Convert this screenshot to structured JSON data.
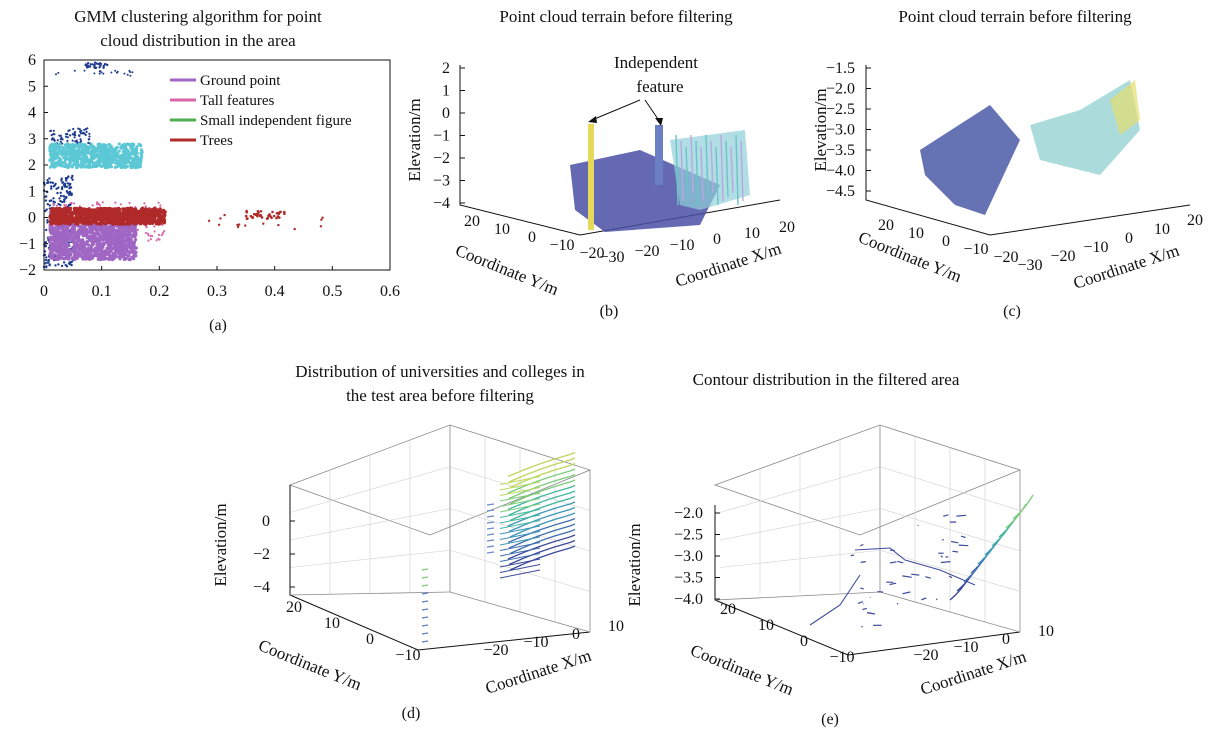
{
  "chart_data": [
    {
      "id": "a",
      "type": "scatter",
      "caption": "(a)",
      "title_lines": [
        "GMM clustering algorithm for point",
        "cloud distribution in the area"
      ],
      "xlabel": "",
      "ylabel": "",
      "xlim": [
        0,
        0.6
      ],
      "ylim": [
        -2,
        6
      ],
      "x_ticks": [
        "0",
        "0.1",
        "0.2",
        "0.3",
        "0.4",
        "0.5",
        "0.6"
      ],
      "y_ticks": [
        "6",
        "5",
        "4",
        "3",
        "2",
        "1",
        "0",
        "−1",
        "−2"
      ],
      "legend_position": "top-right",
      "series": [
        {
          "name": "Ground point",
          "color": "#a066c4",
          "x_range": [
            0.01,
            0.16
          ],
          "y_range": [
            -1.6,
            -0.2
          ]
        },
        {
          "name": "Tall features",
          "color": "#d966a8",
          "x_range": [
            0.01,
            0.2
          ],
          "y_range": [
            -0.8,
            0.5
          ]
        },
        {
          "name": "Small independent figure",
          "color": "#4caf50",
          "x_range": [
            0.01,
            0.17
          ],
          "y_range": [
            1.9,
            2.7
          ]
        },
        {
          "name": "Trees",
          "color": "#b02a2a",
          "x_range": [
            0.01,
            0.21
          ],
          "y_range": [
            -0.25,
            0.35
          ]
        }
      ],
      "extra_clusters": [
        {
          "label": "cyan band",
          "color": "#5cc8d6",
          "x_range": [
            0.01,
            0.17
          ],
          "y_range": [
            1.9,
            2.8
          ]
        },
        {
          "label": "navy points",
          "color": "#1f3b8f",
          "x_range": [
            0.0,
            0.09
          ],
          "y_range": [
            -2.0,
            5.9
          ]
        }
      ]
    },
    {
      "id": "b",
      "type": "3d-surface",
      "caption": "(b)",
      "title": "Point cloud terrain before filtering",
      "annotation": [
        "Independent",
        "feature"
      ],
      "xlabel": "Coordinate X/m",
      "ylabel": "Coordinate Y/m",
      "zlabel": "Elevation/m",
      "x_ticks": [
        "−30",
        "−20",
        "−10",
        "0",
        "10",
        "20"
      ],
      "y_ticks": [
        "20",
        "10",
        "0",
        "−10",
        "−20"
      ],
      "z_ticks": [
        "2",
        "1",
        "0",
        "−1",
        "−2",
        "−3",
        "−4"
      ]
    },
    {
      "id": "c",
      "type": "3d-surface",
      "caption": "(c)",
      "title": "Point cloud terrain before filtering",
      "xlabel": "Coordinate X/m",
      "ylabel": "Coordinate Y/m",
      "zlabel": "Elevation/m",
      "x_ticks": [
        "−30",
        "−20",
        "−10",
        "0",
        "10",
        "20"
      ],
      "y_ticks": [
        "20",
        "10",
        "0",
        "−10",
        "−20"
      ],
      "z_ticks": [
        "−1.5",
        "−2.0",
        "−2.5",
        "−3.0",
        "−3.5",
        "−4.0",
        "−4.5"
      ]
    },
    {
      "id": "d",
      "type": "3d-contour",
      "caption": "(d)",
      "title_lines": [
        "Distribution of universities and colleges in",
        "the test area before filtering"
      ],
      "xlabel": "Coordinate X/m",
      "ylabel": "Coordinate Y/m",
      "zlabel": "Elevation/m",
      "x_ticks": [
        "−20",
        "−10",
        "0",
        "10"
      ],
      "y_ticks": [
        "20",
        "10",
        "0",
        "−10"
      ],
      "z_ticks": [
        "0",
        "−2",
        "−4"
      ]
    },
    {
      "id": "e",
      "type": "3d-contour",
      "caption": "(e)",
      "title": "Contour distribution in the filtered area",
      "xlabel": "Coordinate X/m",
      "ylabel": "Coordinate Y/m",
      "zlabel": "Elevation/m",
      "x_ticks": [
        "−20",
        "−10",
        "0",
        "10"
      ],
      "y_ticks": [
        "20",
        "10",
        "0",
        "−10"
      ],
      "z_ticks": [
        "−2.0",
        "−2.5",
        "−3.0",
        "−3.5",
        "−4.0"
      ]
    }
  ]
}
